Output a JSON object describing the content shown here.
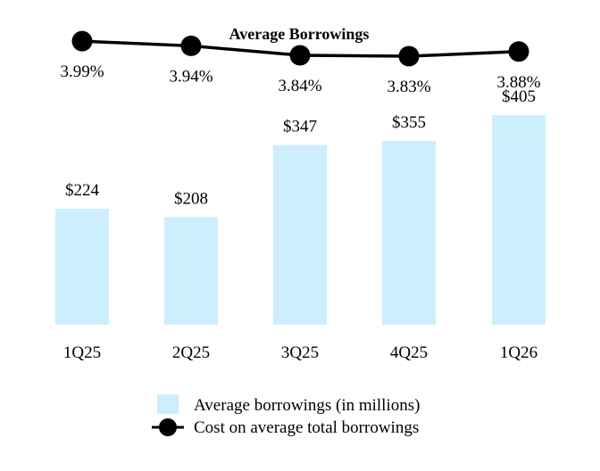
{
  "chart_data": {
    "type": "bar",
    "title": "Average Borrowings",
    "categories": [
      "1Q25",
      "2Q25",
      "3Q25",
      "4Q25",
      "1Q26"
    ],
    "bar_labels": [
      "$224",
      "$208",
      "$347",
      "$355",
      "$405"
    ],
    "line_labels": [
      "3.99%",
      "3.94%",
      "3.84%",
      "3.83%",
      "3.88%"
    ],
    "series": [
      {
        "name": "Average borrowings (in millions)",
        "type": "bar",
        "values": [
          224,
          208,
          347,
          355,
          405
        ],
        "color": "#cdeefd"
      },
      {
        "name": "Cost on average total borrowings",
        "type": "line",
        "values": [
          3.99,
          3.94,
          3.84,
          3.83,
          3.88
        ],
        "color": "#000000"
      }
    ],
    "ylim_bar": [
      0,
      405
    ],
    "ylim_line": [
      3.35,
      4.37
    ],
    "legend": "bottom-center",
    "grid": false
  }
}
